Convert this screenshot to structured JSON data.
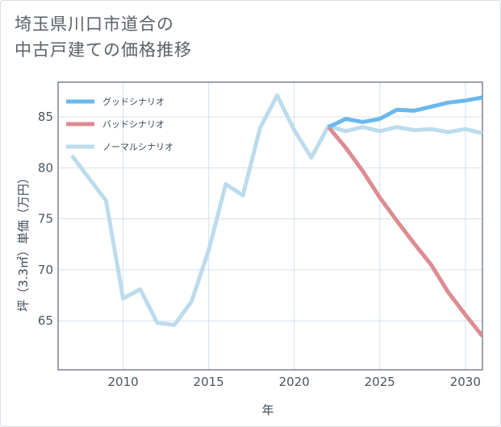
{
  "title": {
    "line1": "埼玉県川口市道合の",
    "line2": "中古戸建ての価格推移"
  },
  "chart_data": {
    "type": "line",
    "xlabel": "年",
    "ylabel": "坪（3.3㎡）単価（万円）",
    "xlim": [
      2006.2,
      2031
    ],
    "ylim": [
      60.2,
      88.4
    ],
    "xticks": [
      2010,
      2015,
      2020,
      2025,
      2030
    ],
    "yticks": [
      65,
      70,
      75,
      80,
      85
    ],
    "grid": true,
    "legend_position": "top-left",
    "series": [
      {
        "name": "グッドシナリオ",
        "color": "#6ab8ee",
        "x": [
          2022,
          2023,
          2024,
          2025,
          2026,
          2027,
          2028,
          2029,
          2030,
          2031
        ],
        "values": [
          84.0,
          84.8,
          84.5,
          84.8,
          85.7,
          85.6,
          86.0,
          86.4,
          86.6,
          86.9
        ]
      },
      {
        "name": "バッドシナリオ",
        "color": "#dc8c92",
        "x": [
          2022,
          2023,
          2024,
          2025,
          2026,
          2027,
          2028,
          2029,
          2030,
          2031
        ],
        "values": [
          84.0,
          82.0,
          79.7,
          77.1,
          74.8,
          72.6,
          70.5,
          67.8,
          65.6,
          63.5
        ]
      },
      {
        "name": "ノーマルシナリオ",
        "color": "#bcdced",
        "x": [
          2007,
          2008,
          2009,
          2010,
          2011,
          2012,
          2013,
          2014,
          2015,
          2016,
          2017,
          2018,
          2019,
          2020,
          2021,
          2022,
          2023,
          2024,
          2025,
          2026,
          2027,
          2028,
          2029,
          2030,
          2031
        ],
        "values": [
          81.2,
          79.0,
          76.8,
          67.2,
          68.1,
          64.8,
          64.6,
          66.9,
          71.9,
          78.4,
          77.3,
          83.9,
          87.1,
          83.7,
          81.0,
          84.1,
          83.6,
          84.0,
          83.6,
          84.0,
          83.7,
          83.8,
          83.5,
          83.8,
          83.4
        ]
      }
    ]
  }
}
